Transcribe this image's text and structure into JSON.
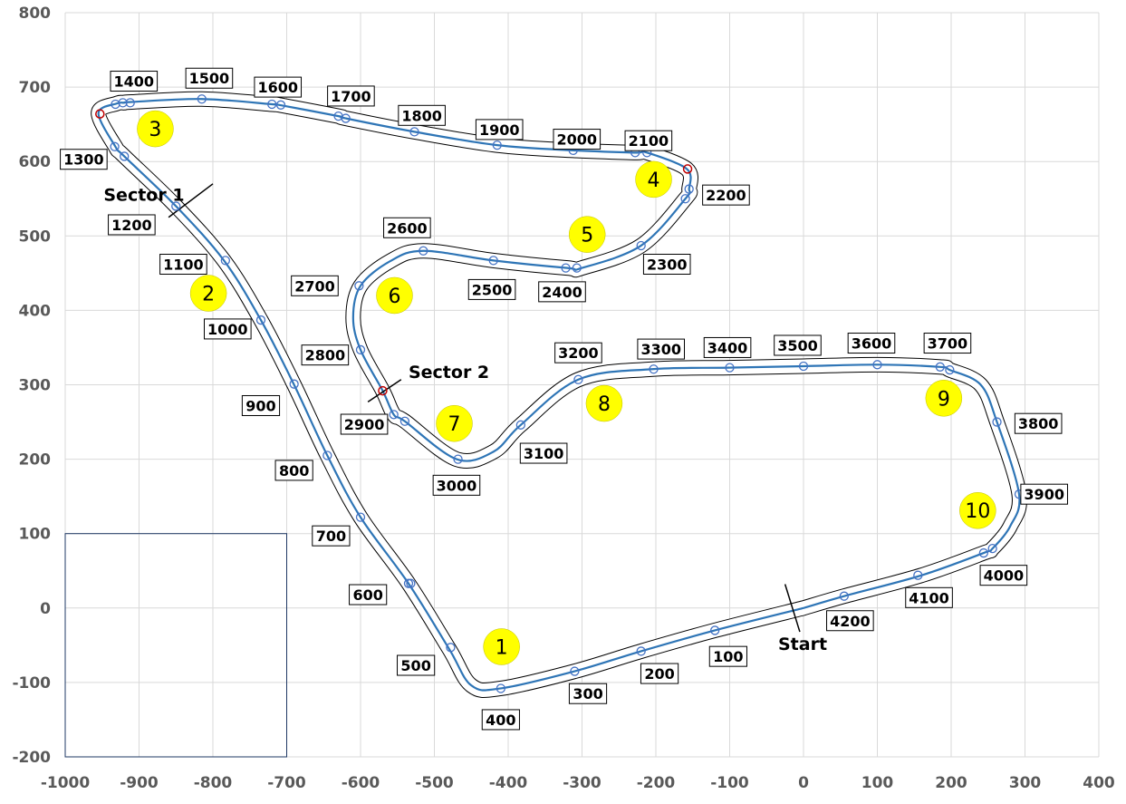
{
  "chart_data": {
    "type": "scatter",
    "title": "",
    "xlabel": "",
    "ylabel": "",
    "xlim": [
      -1000,
      400
    ],
    "ylim": [
      -200,
      800
    ],
    "x_ticks": [
      -1000,
      -900,
      -800,
      -700,
      -600,
      -500,
      -400,
      -300,
      -200,
      -100,
      0,
      100,
      200,
      300,
      400
    ],
    "y_ticks": [
      -200,
      -100,
      0,
      100,
      200,
      300,
      400,
      500,
      600,
      700,
      800
    ],
    "grid": true,
    "colors": {
      "track_center": "#2e75b6",
      "edges": "#000000",
      "marker": "#4472c4",
      "sector_marker": "#c00000",
      "corner_fill": "#ffff00",
      "grid": "#d9d9d9"
    },
    "track_centerline": [
      [
        0,
        0
      ],
      [
        -120,
        -30
      ],
      [
        -220,
        -58
      ],
      [
        -310,
        -85
      ],
      [
        -410,
        -108
      ],
      [
        -450,
        -104
      ],
      [
        -480,
        -55
      ],
      [
        -535,
        33
      ],
      [
        -600,
        122
      ],
      [
        -645,
        205
      ],
      [
        -690,
        300
      ],
      [
        -735,
        387
      ],
      [
        -785,
        467
      ],
      [
        -850,
        540
      ],
      [
        -920,
        607
      ],
      [
        -932,
        620
      ],
      [
        -955,
        665
      ],
      [
        -930,
        678
      ],
      [
        -920,
        679
      ],
      [
        -910,
        680
      ],
      [
        -815,
        684
      ],
      [
        -720,
        677
      ],
      [
        -710,
        676
      ],
      [
        -630,
        661
      ],
      [
        -620,
        658
      ],
      [
        -527,
        640
      ],
      [
        -415,
        622
      ],
      [
        -312,
        615
      ],
      [
        -228,
        612
      ],
      [
        -212,
        612
      ],
      [
        -158,
        590
      ],
      [
        -155,
        563
      ],
      [
        -160,
        550
      ],
      [
        -220,
        487
      ],
      [
        -300,
        457
      ],
      [
        -320,
        457
      ],
      [
        -420,
        467
      ],
      [
        -515,
        480
      ],
      [
        -560,
        466
      ],
      [
        -600,
        433
      ],
      [
        -610,
        390
      ],
      [
        -600,
        347
      ],
      [
        -570,
        292
      ],
      [
        -555,
        260
      ],
      [
        -540,
        251
      ],
      [
        -470,
        200
      ],
      [
        -420,
        210
      ],
      [
        -383,
        246
      ],
      [
        -305,
        307
      ],
      [
        -205,
        321
      ],
      [
        -102,
        323
      ],
      [
        0,
        325
      ],
      [
        100,
        327
      ],
      [
        185,
        324
      ],
      [
        198,
        320
      ],
      [
        240,
        300
      ],
      [
        262,
        250
      ],
      [
        292,
        153
      ],
      [
        280,
        110
      ],
      [
        256,
        80
      ],
      [
        244,
        74
      ],
      [
        160,
        44
      ],
      [
        55,
        16
      ],
      [
        0,
        0
      ]
    ],
    "distance_markers": [
      {
        "x": -120,
        "y": -30
      },
      {
        "x": -220,
        "y": -58
      },
      {
        "x": -310,
        "y": -85
      },
      {
        "x": -410,
        "y": -108
      },
      {
        "x": -478,
        "y": -53
      },
      {
        "x": -535,
        "y": 33
      },
      {
        "x": -532,
        "y": 33
      },
      {
        "x": -600,
        "y": 122
      },
      {
        "x": -645,
        "y": 205
      },
      {
        "x": -690,
        "y": 301
      },
      {
        "x": -735,
        "y": 387
      },
      {
        "x": -783,
        "y": 467
      },
      {
        "x": -850,
        "y": 540
      },
      {
        "x": -920,
        "y": 607
      },
      {
        "x": -933,
        "y": 620
      },
      {
        "x": -932,
        "y": 677
      },
      {
        "x": -922,
        "y": 679
      },
      {
        "x": -912,
        "y": 679
      },
      {
        "x": -815,
        "y": 684
      },
      {
        "x": -720,
        "y": 677
      },
      {
        "x": -708,
        "y": 676
      },
      {
        "x": -630,
        "y": 661
      },
      {
        "x": -620,
        "y": 658
      },
      {
        "x": -527,
        "y": 640
      },
      {
        "x": -415,
        "y": 622
      },
      {
        "x": -312,
        "y": 615
      },
      {
        "x": -228,
        "y": 612
      },
      {
        "x": -212,
        "y": 612
      },
      {
        "x": -155,
        "y": 563
      },
      {
        "x": -160,
        "y": 550
      },
      {
        "x": -220,
        "y": 487
      },
      {
        "x": -307,
        "y": 457
      },
      {
        "x": -322,
        "y": 457
      },
      {
        "x": -420,
        "y": 467
      },
      {
        "x": -515,
        "y": 480
      },
      {
        "x": -602,
        "y": 433
      },
      {
        "x": -600,
        "y": 347
      },
      {
        "x": -555,
        "y": 260
      },
      {
        "x": -540,
        "y": 251
      },
      {
        "x": -468,
        "y": 200
      },
      {
        "x": -383,
        "y": 246
      },
      {
        "x": -305,
        "y": 307
      },
      {
        "x": -203,
        "y": 321
      },
      {
        "x": -100,
        "y": 323
      },
      {
        "x": 0,
        "y": 325
      },
      {
        "x": 100,
        "y": 327
      },
      {
        "x": 185,
        "y": 324
      },
      {
        "x": 198,
        "y": 320
      },
      {
        "x": 262,
        "y": 250
      },
      {
        "x": 292,
        "y": 153
      },
      {
        "x": 256,
        "y": 80
      },
      {
        "x": 244,
        "y": 74
      },
      {
        "x": 155,
        "y": 44
      },
      {
        "x": 55,
        "y": 16
      }
    ],
    "sector_markers": [
      {
        "x": -953,
        "y": 664
      },
      {
        "x": -157,
        "y": 590
      },
      {
        "x": -570,
        "y": 292
      }
    ],
    "distance_labels": [
      {
        "text": "100",
        "x": -102,
        "y": -65
      },
      {
        "text": "200",
        "x": -195,
        "y": -88
      },
      {
        "text": "300",
        "x": -292,
        "y": -115
      },
      {
        "text": "400",
        "x": -410,
        "y": -150
      },
      {
        "text": "500",
        "x": -525,
        "y": -77
      },
      {
        "text": "600",
        "x": -590,
        "y": 18
      },
      {
        "text": "700",
        "x": -640,
        "y": 97
      },
      {
        "text": "800",
        "x": -690,
        "y": 185
      },
      {
        "text": "900",
        "x": -735,
        "y": 272
      },
      {
        "text": "1000",
        "x": -780,
        "y": 375
      },
      {
        "text": "1100",
        "x": -840,
        "y": 462
      },
      {
        "text": "1200",
        "x": -910,
        "y": 515
      },
      {
        "text": "1300",
        "x": -975,
        "y": 603
      },
      {
        "text": "1400",
        "x": -907,
        "y": 708
      },
      {
        "text": "1500",
        "x": -805,
        "y": 712
      },
      {
        "text": "1600",
        "x": -712,
        "y": 700
      },
      {
        "text": "1700",
        "x": -613,
        "y": 688
      },
      {
        "text": "1800",
        "x": -517,
        "y": 662
      },
      {
        "text": "1900",
        "x": -412,
        "y": 643
      },
      {
        "text": "2000",
        "x": -307,
        "y": 630
      },
      {
        "text": "2100",
        "x": -210,
        "y": 628
      },
      {
        "text": "2200",
        "x": -105,
        "y": 555
      },
      {
        "text": "2300",
        "x": -185,
        "y": 462
      },
      {
        "text": "2400",
        "x": -327,
        "y": 425
      },
      {
        "text": "2500",
        "x": -422,
        "y": 428
      },
      {
        "text": "2600",
        "x": -537,
        "y": 511
      },
      {
        "text": "2700",
        "x": -662,
        "y": 433
      },
      {
        "text": "2800",
        "x": -648,
        "y": 340
      },
      {
        "text": "2900",
        "x": -595,
        "y": 247
      },
      {
        "text": "3000",
        "x": -470,
        "y": 165
      },
      {
        "text": "3100",
        "x": -352,
        "y": 208
      },
      {
        "text": "3200",
        "x": -305,
        "y": 343
      },
      {
        "text": "3300",
        "x": -193,
        "y": 348
      },
      {
        "text": "3400",
        "x": -103,
        "y": 350
      },
      {
        "text": "3500",
        "x": -8,
        "y": 353
      },
      {
        "text": "3600",
        "x": 92,
        "y": 356
      },
      {
        "text": "3700",
        "x": 195,
        "y": 356
      },
      {
        "text": "3800",
        "x": 318,
        "y": 248
      },
      {
        "text": "3900",
        "x": 326,
        "y": 153
      },
      {
        "text": "4000",
        "x": 271,
        "y": 44
      },
      {
        "text": "4100",
        "x": 170,
        "y": 14
      },
      {
        "text": "4200",
        "x": 63,
        "y": -17
      }
    ],
    "corners": [
      {
        "text": "1",
        "x": -409,
        "y": -52
      },
      {
        "text": "2",
        "x": -806,
        "y": 423
      },
      {
        "text": "3",
        "x": -878,
        "y": 644
      },
      {
        "text": "4",
        "x": -203,
        "y": 576
      },
      {
        "text": "5",
        "x": -293,
        "y": 502
      },
      {
        "text": "6",
        "x": -554,
        "y": 420
      },
      {
        "text": "7",
        "x": -473,
        "y": 248
      },
      {
        "text": "8",
        "x": -270,
        "y": 275
      },
      {
        "text": "9",
        "x": 190,
        "y": 282
      },
      {
        "text": "10",
        "x": 236,
        "y": 131
      }
    ],
    "annotations": [
      {
        "text": "Sector 1",
        "x": -948,
        "y": 547
      },
      {
        "text": "Sector 2",
        "x": -535,
        "y": 309
      },
      {
        "text": "Start",
        "x": 0,
        "y": -56
      }
    ],
    "inset_box": {
      "x": [
        -1000,
        -700
      ],
      "y": [
        -200,
        100
      ]
    }
  }
}
